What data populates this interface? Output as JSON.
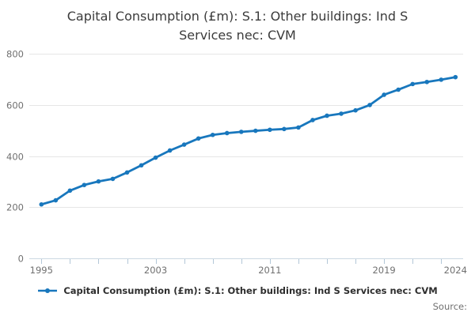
{
  "page": {
    "title_lines": [
      "Capital Consumption (£m): S.1: Other buildings: Ind S",
      "Services nec: CVM"
    ],
    "source_label": "Source:"
  },
  "legend": {
    "label": "Capital Consumption (£m): S.1: Other buildings: Ind S Services nec: CVM"
  },
  "colors": {
    "line": "#1877bd",
    "marker": "#1877bd",
    "grid": "#e6e6e6",
    "axis_line": "#ccd8e2",
    "tick_mark": "#b3c7d8",
    "tick_text": "#707070",
    "title_text": "#3b3b3b",
    "legend_text": "#2e2e2e"
  },
  "chart_data": {
    "type": "line",
    "title": "Capital Consumption (£m): S.1: Other buildings: Ind S Services nec: CVM",
    "xlabel": "",
    "ylabel": "",
    "x": [
      1995,
      1996,
      1997,
      1998,
      1999,
      2000,
      2001,
      2002,
      2003,
      2004,
      2005,
      2006,
      2007,
      2008,
      2009,
      2010,
      2011,
      2012,
      2013,
      2014,
      2015,
      2016,
      2017,
      2018,
      2019,
      2020,
      2021,
      2022,
      2023,
      2024
    ],
    "series": [
      {
        "name": "Capital Consumption (£m): S.1: Other buildings: Ind S Services nec: CVM",
        "values": [
          211,
          227,
          265,
          287,
          301,
          311,
          336,
          364,
          394,
          422,
          445,
          469,
          483,
          490,
          495,
          499,
          503,
          506,
          512,
          541,
          558,
          566,
          579,
          600,
          640,
          660,
          682,
          690,
          699,
          709
        ]
      }
    ],
    "ylim": [
      0,
      800
    ],
    "yticks": [
      0,
      200,
      400,
      600,
      800
    ],
    "xticks_minor": [
      1995,
      1997,
      1999,
      2001,
      2003,
      2005,
      2007,
      2009,
      2011,
      2013,
      2015,
      2017,
      2019,
      2021,
      2023
    ],
    "xtick_labels": [
      {
        "label": "1995",
        "year": 1995
      },
      {
        "label": "2003",
        "year": 2003
      },
      {
        "label": "2011",
        "year": 2011
      },
      {
        "label": "2019",
        "year": 2019
      },
      {
        "label": "2024",
        "year": 2024
      }
    ],
    "grid": "horizontal",
    "legend_position": "bottom"
  }
}
